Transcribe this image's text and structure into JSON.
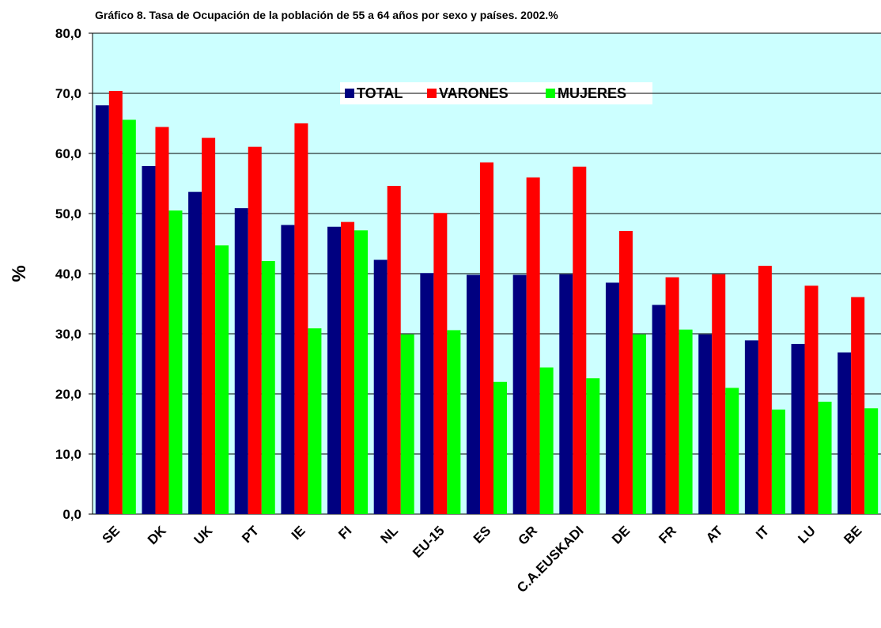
{
  "chart_data": {
    "type": "bar",
    "title": "Gráfico 8.  Tasa de Ocupación de la población de 55 a 64 años por sexo y países. 2002.%",
    "y_label": "%",
    "categories": [
      "SE",
      "DK",
      "UK",
      "PT",
      "IE",
      "FI",
      "NL",
      "EU-15",
      "ES",
      "GR",
      "C.A.EUSKADI",
      "DE",
      "FR",
      "AT",
      "IT",
      "LU",
      "BE"
    ],
    "series": [
      {
        "name": "TOTAL",
        "color": "#000080",
        "values": [
          68.0,
          57.9,
          53.6,
          50.9,
          48.1,
          47.8,
          42.3,
          40.1,
          39.8,
          39.8,
          39.9,
          38.5,
          34.8,
          29.9,
          28.9,
          28.3,
          26.9
        ]
      },
      {
        "name": "VARONES",
        "color": "#ff0000",
        "values": [
          70.4,
          64.4,
          62.6,
          61.1,
          65.0,
          48.6,
          54.6,
          50.1,
          58.5,
          56.0,
          57.8,
          47.1,
          39.4,
          39.9,
          41.3,
          38.0,
          36.1
        ]
      },
      {
        "name": "MUJERES",
        "color": "#00ff00",
        "values": [
          65.6,
          50.5,
          44.7,
          42.1,
          30.9,
          47.2,
          29.9,
          30.6,
          22.0,
          24.4,
          22.6,
          29.9,
          30.7,
          21.0,
          17.4,
          18.7,
          17.6
        ]
      }
    ],
    "ylim": [
      0,
      80
    ],
    "yticks": [
      {
        "value": 0,
        "label": "0,0"
      },
      {
        "value": 10,
        "label": "10,0"
      },
      {
        "value": 20,
        "label": "20,0"
      },
      {
        "value": 30,
        "label": "30,0"
      },
      {
        "value": 40,
        "label": "40,0"
      },
      {
        "value": 50,
        "label": "50,0"
      },
      {
        "value": 60,
        "label": "60,0"
      },
      {
        "value": 70,
        "label": "70,0"
      },
      {
        "value": 80,
        "label": "80,0"
      }
    ],
    "grid": true,
    "legend": "top"
  }
}
